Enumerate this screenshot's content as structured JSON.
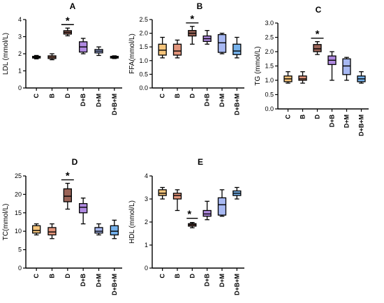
{
  "figure": {
    "background": "#ffffff"
  },
  "colors": {
    "C": "#f6c57c",
    "B": "#e2957c",
    "D": "#9a6458",
    "D+B": "#b08ae0",
    "D+M": "#a7b8f2",
    "D+B+M": "#76b2ec"
  },
  "chart_data": [
    {
      "type": "box",
      "panel": "A",
      "ylabel": "LDL (mmol/L)",
      "ylim": [
        0,
        4
      ],
      "yticks": [
        "0",
        "1",
        "2",
        "3",
        "4"
      ],
      "categories": [
        "C",
        "B",
        "D",
        "D+B",
        "D+M",
        "D+B+M"
      ],
      "boxes": [
        {
          "min": 1.7,
          "q1": 1.75,
          "median": 1.8,
          "q3": 1.85,
          "max": 1.9
        },
        {
          "min": 1.65,
          "q1": 1.72,
          "median": 1.8,
          "q3": 1.88,
          "max": 2.0
        },
        {
          "min": 3.05,
          "q1": 3.15,
          "median": 3.25,
          "q3": 3.35,
          "max": 3.5
        },
        {
          "min": 2.0,
          "q1": 2.1,
          "median": 2.4,
          "q3": 2.7,
          "max": 2.9
        },
        {
          "min": 1.9,
          "q1": 2.05,
          "median": 2.15,
          "q3": 2.25,
          "max": 2.4
        },
        {
          "min": 1.72,
          "q1": 1.75,
          "median": 1.8,
          "q3": 1.85,
          "max": 1.88
        }
      ],
      "significance": {
        "category": "D",
        "label": "*"
      }
    },
    {
      "type": "box",
      "panel": "B",
      "ylabel": "FFA(mmol/L)",
      "ylim": [
        0,
        2.5
      ],
      "yticks": [
        "0.0",
        "0.5",
        "1.0",
        "1.5",
        "2.0",
        "2.5"
      ],
      "categories": [
        "C",
        "B",
        "D",
        "D+B",
        "D+M",
        "D+B+M"
      ],
      "boxes": [
        {
          "min": 1.1,
          "q1": 1.2,
          "median": 1.38,
          "q3": 1.6,
          "max": 1.85
        },
        {
          "min": 1.1,
          "q1": 1.2,
          "median": 1.35,
          "q3": 1.6,
          "max": 1.75
        },
        {
          "min": 1.6,
          "q1": 1.9,
          "median": 2.0,
          "q3": 2.1,
          "max": 2.25
        },
        {
          "min": 1.6,
          "q1": 1.7,
          "median": 1.8,
          "q3": 1.9,
          "max": 2.1
        },
        {
          "min": 1.25,
          "q1": 1.3,
          "median": 1.65,
          "q3": 1.95,
          "max": 2.0
        },
        {
          "min": 1.1,
          "q1": 1.22,
          "median": 1.35,
          "q3": 1.6,
          "max": 1.85
        }
      ],
      "significance": {
        "category": "D",
        "label": "*"
      }
    },
    {
      "type": "box",
      "panel": "C",
      "ylabel": "TG (mmol/L)",
      "ylim": [
        0,
        3
      ],
      "yticks": [
        "0.0",
        "0.5",
        "1.0",
        "1.5",
        "2.0",
        "2.5",
        "3.0"
      ],
      "categories": [
        "C",
        "B",
        "D",
        "D+B",
        "D+M",
        "D+B+M"
      ],
      "boxes": [
        {
          "min": 0.9,
          "q1": 0.95,
          "median": 1.05,
          "q3": 1.15,
          "max": 1.3
        },
        {
          "min": 0.9,
          "q1": 1.0,
          "median": 1.05,
          "q3": 1.15,
          "max": 1.3
        },
        {
          "min": 1.9,
          "q1": 2.0,
          "median": 2.1,
          "q3": 2.25,
          "max": 2.35
        },
        {
          "min": 1.0,
          "q1": 1.55,
          "median": 1.7,
          "q3": 1.85,
          "max": 2.0
        },
        {
          "min": 1.0,
          "q1": 1.2,
          "median": 1.5,
          "q3": 1.75,
          "max": 1.8
        },
        {
          "min": 0.9,
          "q1": 0.95,
          "median": 1.05,
          "q3": 1.15,
          "max": 1.3
        }
      ],
      "significance": {
        "category": "D",
        "label": "*"
      }
    },
    {
      "type": "box",
      "panel": "D",
      "ylabel": "TC(mmol/L)",
      "ylim": [
        0,
        25
      ],
      "yticks": [
        "0",
        "5",
        "10",
        "15",
        "20",
        "25"
      ],
      "categories": [
        "C",
        "B",
        "D",
        "D+B",
        "D+M",
        "D+B+M"
      ],
      "boxes": [
        {
          "min": 9.0,
          "q1": 9.5,
          "median": 10.2,
          "q3": 11.5,
          "max": 12.0
        },
        {
          "min": 8.0,
          "q1": 9.0,
          "median": 9.8,
          "q3": 11.0,
          "max": 12.0
        },
        {
          "min": 16.0,
          "q1": 18.0,
          "median": 19.5,
          "q3": 21.5,
          "max": 23.0
        },
        {
          "min": 12.0,
          "q1": 15.0,
          "median": 16.5,
          "q3": 17.5,
          "max": 19.0
        },
        {
          "min": 9.0,
          "q1": 9.5,
          "median": 10.0,
          "q3": 11.0,
          "max": 12.0
        },
        {
          "min": 8.0,
          "q1": 9.0,
          "median": 10.0,
          "q3": 11.5,
          "max": 13.0
        }
      ],
      "significance": {
        "category": "D",
        "label": "*"
      }
    },
    {
      "type": "box",
      "panel": "E",
      "ylabel": "HDL (mmol/L)",
      "ylim": [
        0,
        4
      ],
      "yticks": [
        "0",
        "1",
        "2",
        "3",
        "4"
      ],
      "categories": [
        "C",
        "B",
        "D",
        "D+B",
        "D+M",
        "D+B+M"
      ],
      "boxes": [
        {
          "min": 3.0,
          "q1": 3.15,
          "median": 3.25,
          "q3": 3.4,
          "max": 3.5
        },
        {
          "min": 2.5,
          "q1": 3.0,
          "median": 3.15,
          "q3": 3.25,
          "max": 3.4
        },
        {
          "min": 1.75,
          "q1": 1.82,
          "median": 1.88,
          "q3": 1.93,
          "max": 1.98
        },
        {
          "min": 2.1,
          "q1": 2.25,
          "median": 2.35,
          "q3": 2.5,
          "max": 2.9
        },
        {
          "min": 2.25,
          "q1": 2.3,
          "median": 2.75,
          "q3": 3.05,
          "max": 3.4
        },
        {
          "min": 3.0,
          "q1": 3.15,
          "median": 3.25,
          "q3": 3.35,
          "max": 3.5
        }
      ],
      "significance": {
        "category": "D",
        "label": "*",
        "placement": "below"
      }
    }
  ]
}
